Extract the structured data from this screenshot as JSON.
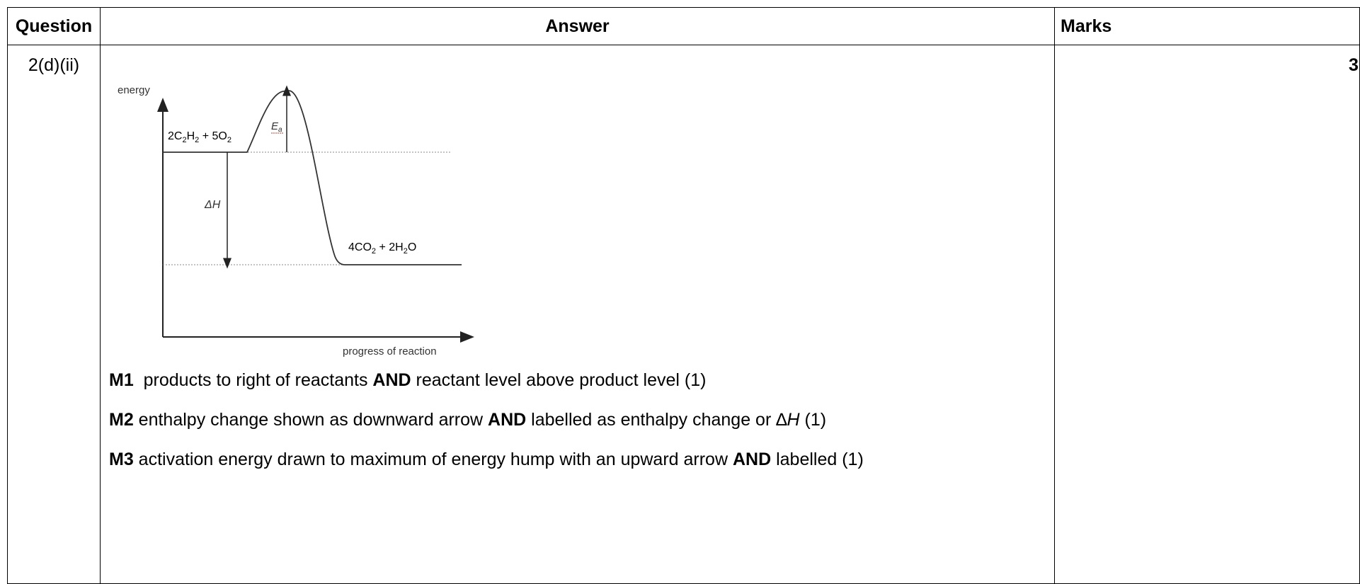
{
  "table": {
    "headers": {
      "question": "Question",
      "answer": "Answer",
      "marks": "Marks"
    },
    "row": {
      "question": "2(d)(ii)",
      "marks": "3"
    }
  },
  "diagram": {
    "y_axis_label": "energy",
    "x_axis_label": "progress of reaction",
    "reactants": {
      "a": "2C",
      "a_sub": "2",
      "b": "H",
      "b_sub": "2",
      "c": " + 5O",
      "c_sub": "2"
    },
    "products": {
      "a": "4CO",
      "a_sub": "2",
      "b": " + 2H",
      "b_sub": "2",
      "c": "O"
    },
    "activation_label": "E",
    "activation_sub": "a",
    "enthalpy_label": "ΔH"
  },
  "marking_points": [
    {
      "code": "M1",
      "t1": "  products to right of reactants ",
      "k1": "AND",
      "t2": " reactant level above product level (1)"
    },
    {
      "code": "M2",
      "t1": " enthalpy change shown as downward arrow ",
      "k1": "AND",
      "t2": " labelled as enthalpy change or ",
      "sym": "∆",
      "ital": "H",
      "t3": " (1)"
    },
    {
      "code": "M3",
      "t1": " activation energy drawn to maximum of energy hump with an upward arrow ",
      "k1": "AND",
      "t2": " labelled (1)"
    }
  ]
}
